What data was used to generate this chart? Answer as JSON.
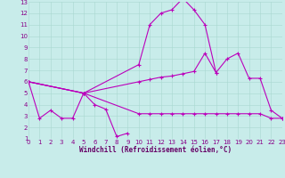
{
  "xlabel": "Windchill (Refroidissement éolien,°C)",
  "xlim": [
    0,
    23
  ],
  "ylim": [
    1,
    13
  ],
  "xticks": [
    0,
    1,
    2,
    3,
    4,
    5,
    6,
    7,
    8,
    9,
    10,
    11,
    12,
    13,
    14,
    15,
    16,
    17,
    18,
    19,
    20,
    21,
    22,
    23
  ],
  "yticks": [
    1,
    2,
    3,
    4,
    5,
    6,
    7,
    8,
    9,
    10,
    11,
    12,
    13
  ],
  "background_color": "#c8ecea",
  "grid_color": "#a8d8d0",
  "line_color": "#bb00bb",
  "series": [
    {
      "x": [
        0,
        1,
        2,
        3,
        4,
        5,
        6,
        7,
        8,
        9
      ],
      "y": [
        6.0,
        2.8,
        3.5,
        2.8,
        2.8,
        5.0,
        4.0,
        3.6,
        1.2,
        1.5
      ]
    },
    {
      "x": [
        0,
        5,
        10,
        11,
        12,
        13,
        14,
        15,
        16,
        17
      ],
      "y": [
        6.0,
        5.0,
        7.5,
        11.0,
        12.0,
        12.3,
        13.3,
        12.3,
        11.0,
        6.8
      ]
    },
    {
      "x": [
        0,
        5,
        10,
        11,
        12,
        13,
        14,
        15,
        16,
        17,
        18,
        19,
        20,
        21,
        22,
        23
      ],
      "y": [
        6.0,
        5.0,
        6.0,
        6.2,
        6.4,
        6.5,
        6.7,
        6.9,
        8.5,
        6.8,
        8.0,
        8.5,
        6.3,
        6.3,
        3.5,
        2.8
      ]
    },
    {
      "x": [
        0,
        5,
        10,
        11,
        12,
        13,
        14,
        15,
        16,
        17,
        18,
        19,
        20,
        21,
        22,
        23
      ],
      "y": [
        6.0,
        5.0,
        3.2,
        3.2,
        3.2,
        3.2,
        3.2,
        3.2,
        3.2,
        3.2,
        3.2,
        3.2,
        3.2,
        3.2,
        2.8,
        2.8
      ]
    }
  ]
}
